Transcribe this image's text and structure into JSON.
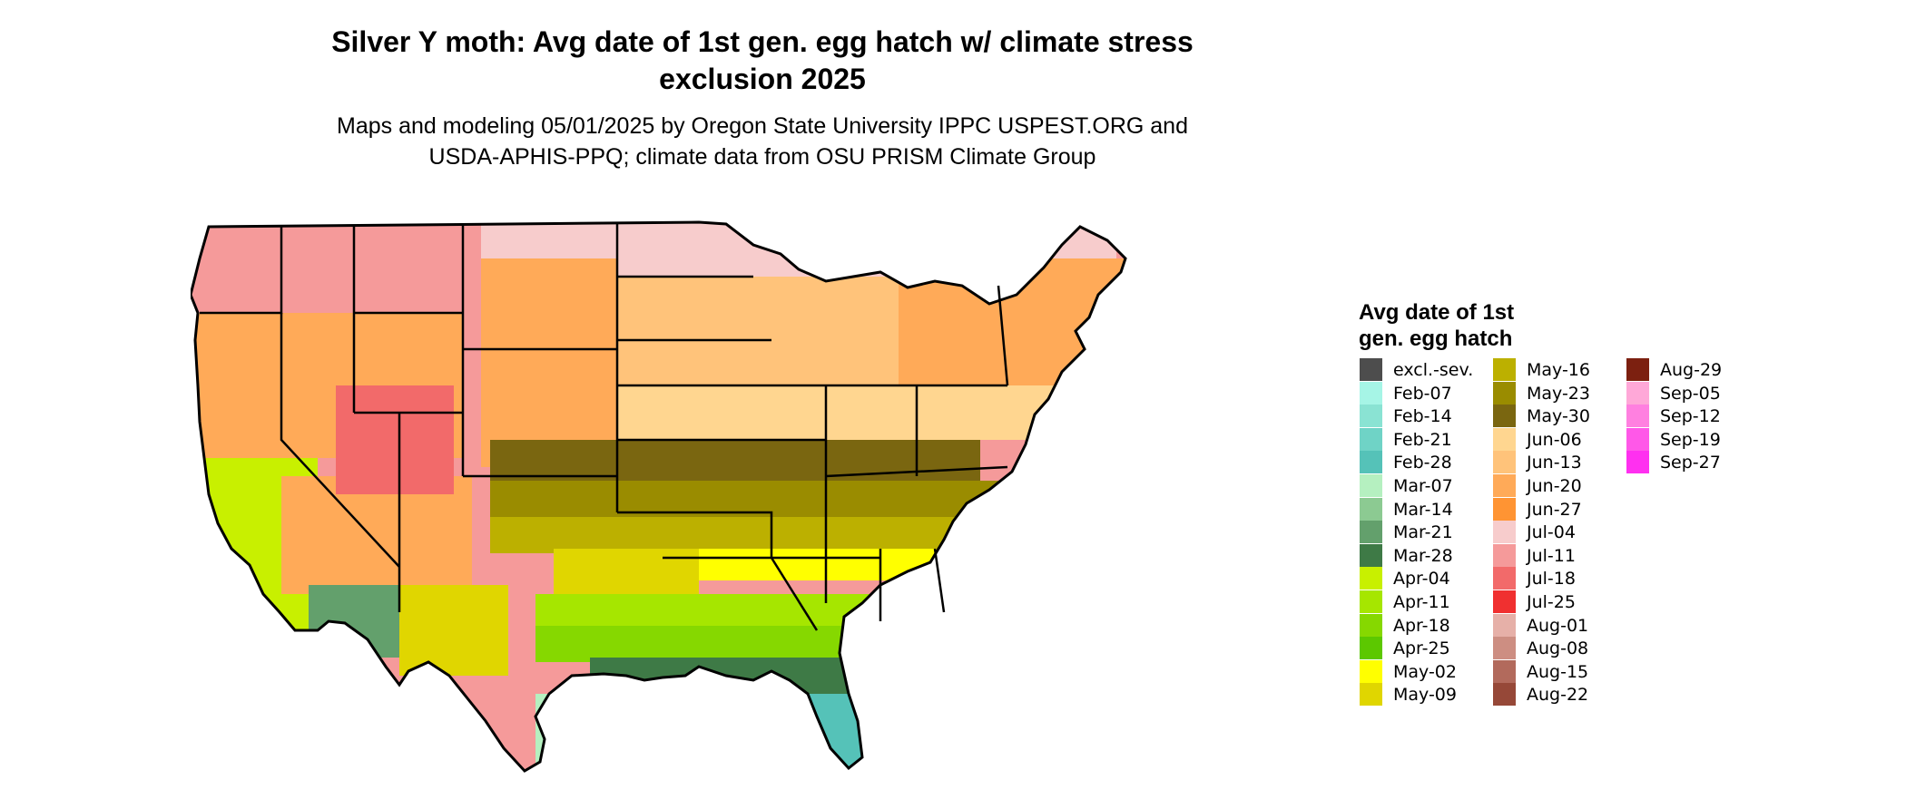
{
  "title": "Silver Y moth: Avg date of 1st gen. egg hatch w/ climate stress\nexclusion 2025",
  "subtitle": "Maps and modeling 05/01/2025 by Oregon State University IPPC USPEST.ORG and\nUSDA-APHIS-PPQ; climate data from OSU PRISM Climate Group",
  "legend": {
    "title": "Avg date of 1st\ngen. egg hatch",
    "columns": [
      [
        {
          "label": "excl.-sev.",
          "color": "#4d4d4d"
        },
        {
          "label": "Feb-07",
          "color": "#a6f5e6"
        },
        {
          "label": "Feb-14",
          "color": "#8ae3d3"
        },
        {
          "label": "Feb-21",
          "color": "#6fd3c6"
        },
        {
          "label": "Feb-28",
          "color": "#55c2b8"
        },
        {
          "label": "Mar-07",
          "color": "#b5f0c0"
        },
        {
          "label": "Mar-14",
          "color": "#8cca92"
        },
        {
          "label": "Mar-21",
          "color": "#63a06c"
        },
        {
          "label": "Mar-28",
          "color": "#3e7a46"
        },
        {
          "label": "Apr-04",
          "color": "#c8f000"
        },
        {
          "label": "Apr-11",
          "color": "#a6e600"
        },
        {
          "label": "Apr-18",
          "color": "#86d800"
        },
        {
          "label": "Apr-25",
          "color": "#5cc800"
        },
        {
          "label": "May-02",
          "color": "#ffff00"
        },
        {
          "label": "May-09",
          "color": "#e0d600"
        }
      ],
      [
        {
          "label": "May-16",
          "color": "#bcb000"
        },
        {
          "label": "May-23",
          "color": "#9a8c00"
        },
        {
          "label": "May-30",
          "color": "#7a6610"
        },
        {
          "label": "Jun-06",
          "color": "#ffd690"
        },
        {
          "label": "Jun-13",
          "color": "#ffc37a"
        },
        {
          "label": "Jun-20",
          "color": "#ffaa58"
        },
        {
          "label": "Jun-27",
          "color": "#ff9433"
        },
        {
          "label": "Jul-04",
          "color": "#f7cccc"
        },
        {
          "label": "Jul-11",
          "color": "#f59a9a"
        },
        {
          "label": "Jul-18",
          "color": "#f26a6a"
        },
        {
          "label": "Jul-25",
          "color": "#f03030"
        },
        {
          "label": "Aug-01",
          "color": "#e6b0a8"
        },
        {
          "label": "Aug-08",
          "color": "#cd8e82"
        },
        {
          "label": "Aug-15",
          "color": "#b26a5c"
        },
        {
          "label": "Aug-22",
          "color": "#964838"
        }
      ],
      [
        {
          "label": "Aug-29",
          "color": "#7c2010"
        },
        {
          "label": "Sep-05",
          "color": "#ffa8d8"
        },
        {
          "label": "Sep-12",
          "color": "#ff80e0"
        },
        {
          "label": "Sep-19",
          "color": "#ff58e8"
        },
        {
          "label": "Sep-27",
          "color": "#ff30f0"
        }
      ]
    ]
  }
}
